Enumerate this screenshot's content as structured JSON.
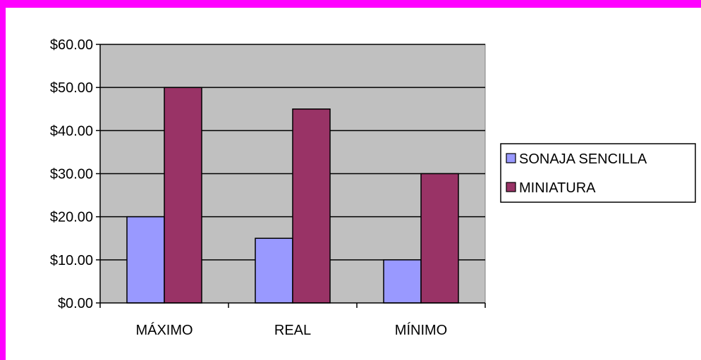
{
  "chart_data": {
    "type": "bar",
    "categories": [
      "MÁXIMO",
      "REAL",
      "MÍNIMO"
    ],
    "series": [
      {
        "name": "SONAJA SENCILLA",
        "values": [
          20,
          15,
          10
        ],
        "color": "#9999ff"
      },
      {
        "name": "MINIATURA",
        "values": [
          50,
          45,
          30
        ],
        "color": "#993366"
      }
    ],
    "ylim": [
      0,
      60
    ],
    "yticks": [
      0,
      10,
      20,
      30,
      40,
      50,
      60
    ],
    "ytick_labels": [
      "$0.00",
      "$10.00",
      "$20.00",
      "$30.00",
      "$40.00",
      "$50.00",
      "$60.00"
    ],
    "grid": true,
    "legend_position": "right",
    "plot_background": "#c0c0c0",
    "frame_color": "#ff00ff"
  }
}
